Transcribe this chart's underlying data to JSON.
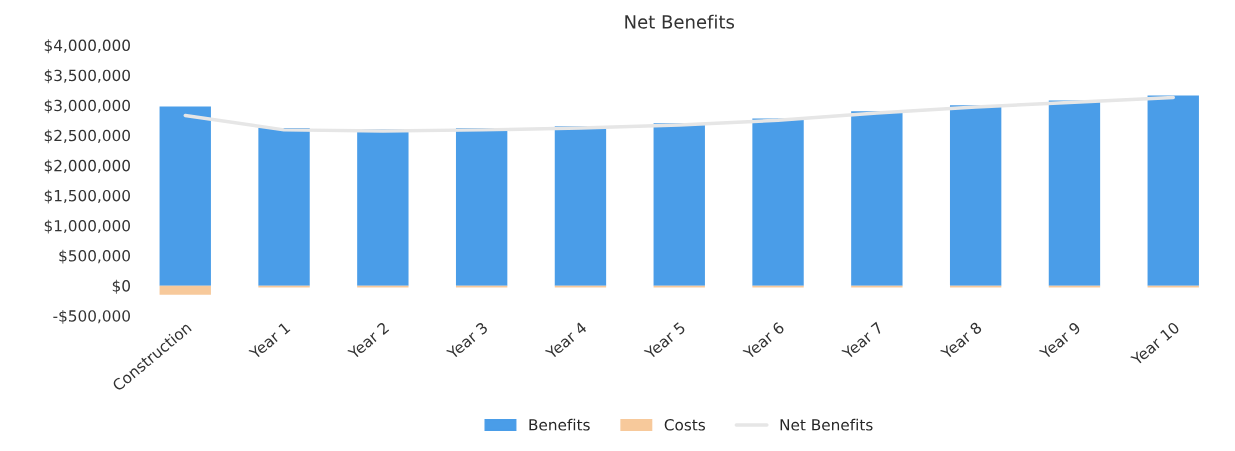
{
  "chart_data": {
    "type": "bar",
    "title": "Net Benefits",
    "stacked": true,
    "categories": [
      "Construction",
      "Year 1",
      "Year 2",
      "Year 3",
      "Year 4",
      "Year 5",
      "Year 6",
      "Year 7",
      "Year 8",
      "Year 9",
      "Year 10"
    ],
    "series": [
      {
        "name": "Benefits",
        "color": "#4a9de8",
        "values": [
          2980000,
          2620000,
          2600000,
          2620000,
          2650000,
          2700000,
          2780000,
          2900000,
          3000000,
          3080000,
          3160000
        ]
      },
      {
        "name": "Costs",
        "color": "#f7c99b",
        "values": [
          -150000,
          -30000,
          -30000,
          -30000,
          -30000,
          -30000,
          -30000,
          -30000,
          -30000,
          -30000,
          -30000
        ]
      },
      {
        "name": "Net Benefits",
        "type": "line",
        "color": "#e6e6e6",
        "values": [
          2830000,
          2590000,
          2570000,
          2590000,
          2620000,
          2670000,
          2750000,
          2870000,
          2970000,
          3050000,
          3130000
        ]
      }
    ],
    "ylim": [
      -500000,
      4000000
    ],
    "yticks": [
      {
        "value": -500000,
        "label": "-$500,000"
      },
      {
        "value": 0,
        "label": "$0"
      },
      {
        "value": 500000,
        "label": "$500,000"
      },
      {
        "value": 1000000,
        "label": "$1,000,000"
      },
      {
        "value": 1500000,
        "label": "$1,500,000"
      },
      {
        "value": 2000000,
        "label": "$2,000,000"
      },
      {
        "value": 2500000,
        "label": "$2,500,000"
      },
      {
        "value": 3000000,
        "label": "$3,000,000"
      },
      {
        "value": 3500000,
        "label": "$3,500,000"
      },
      {
        "value": 4000000,
        "label": "$4,000,000"
      }
    ],
    "grid": false,
    "legend": "bottom"
  }
}
